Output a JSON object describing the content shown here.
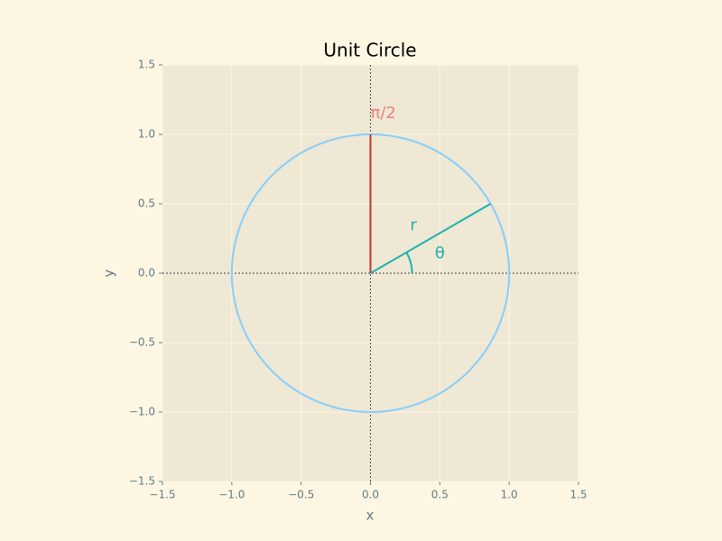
{
  "chart_data": {
    "type": "unit_circle",
    "title": "Unit Circle",
    "x_label": "x",
    "y_label": "y",
    "xlim": [
      -1.5,
      1.5
    ],
    "ylim": [
      -1.5,
      1.5
    ],
    "xticks": [
      {
        "value": -1.5,
        "label": "−1.5"
      },
      {
        "value": -1.0,
        "label": "−1.0"
      },
      {
        "value": -0.5,
        "label": "−0.5"
      },
      {
        "value": 0,
        "label": "0.0"
      },
      {
        "value": 0.5,
        "label": "0.5"
      },
      {
        "value": 1.0,
        "label": "1.0"
      },
      {
        "value": 1.5,
        "label": "1.5"
      }
    ],
    "yticks": [
      {
        "value": -1.5,
        "label": "−1.5"
      },
      {
        "value": -1.0,
        "label": "−1.0"
      },
      {
        "value": -0.5,
        "label": "−0.5"
      },
      {
        "value": 0,
        "label": "0.0"
      },
      {
        "value": 0.5,
        "label": "0.5"
      },
      {
        "value": 1.0,
        "label": "1.0"
      },
      {
        "value": 1.5,
        "label": "1.5"
      }
    ],
    "grid": true,
    "radius": 1,
    "angle_deg": 30,
    "arc_radius": 0.3,
    "circle_color": "#87cefa",
    "radius_color": "#20b2aa",
    "vertical_color": "#c0392b",
    "annotations": [
      {
        "text": "r",
        "x": 0.31,
        "y": 0.34,
        "color": "#20b2aa"
      },
      {
        "text": "θ",
        "x": 0.5,
        "y": 0.14,
        "color": "#20b2aa"
      },
      {
        "text": "π/2",
        "x": 0.0,
        "y": 1.15,
        "color": "#f08080"
      }
    ]
  }
}
